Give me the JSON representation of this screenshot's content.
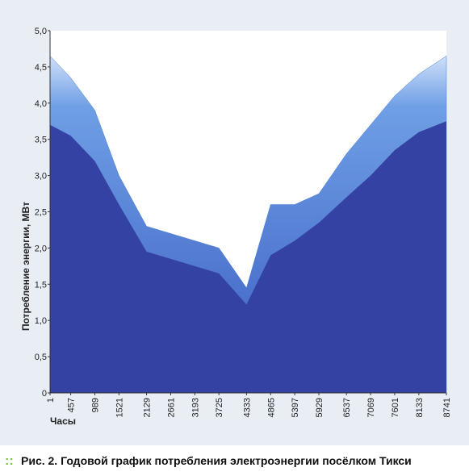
{
  "chart_data": {
    "type": "area",
    "y_label": "Потребление энергии, МВт",
    "x_label": "Часы",
    "x": [
      1,
      457,
      989,
      1521,
      2129,
      2661,
      3193,
      3725,
      4333,
      4865,
      5397,
      5929,
      6537,
      7069,
      7601,
      8133,
      8741
    ],
    "series": [
      {
        "color": "#4a7fd6",
        "values": [
          4.65,
          4.35,
          3.9,
          3.0,
          2.3,
          2.2,
          2.1,
          2.0,
          1.45,
          2.6,
          2.6,
          2.75,
          3.3,
          3.7,
          4.1,
          4.4,
          4.65
        ]
      },
      {
        "color": "#3443a3",
        "values": [
          3.7,
          3.55,
          3.2,
          2.6,
          1.95,
          1.85,
          1.75,
          1.65,
          1.22,
          1.9,
          2.1,
          2.35,
          2.7,
          3.0,
          3.35,
          3.6,
          3.75
        ]
      }
    ],
    "xlim": [
      1,
      8741
    ],
    "xticks": [
      1,
      457,
      989,
      1521,
      2129,
      2661,
      3193,
      3725,
      4333,
      4865,
      5397,
      5929,
      6537,
      7069,
      7601,
      8133,
      8741
    ],
    "ylim": [
      0,
      5
    ],
    "yticks": [
      0,
      {
        "value": 0.5,
        "label": "0,5"
      },
      {
        "value": 1,
        "label": "1,0"
      },
      {
        "value": 1.5,
        "label": "1,5"
      },
      {
        "value": 2,
        "label": "2,0"
      },
      {
        "value": 2.5,
        "label": "2,5"
      },
      {
        "value": 3,
        "label": "3,0"
      },
      {
        "value": 3.5,
        "label": "3,5"
      },
      {
        "value": 4,
        "label": "4,0"
      },
      {
        "value": 4.5,
        "label": "4,5"
      },
      {
        "value": 5,
        "label": "5,0"
      }
    ]
  },
  "caption": {
    "label": "Рис. 2.",
    "text": "Годовой график потребления электроэнергии посёлком Тикси"
  }
}
